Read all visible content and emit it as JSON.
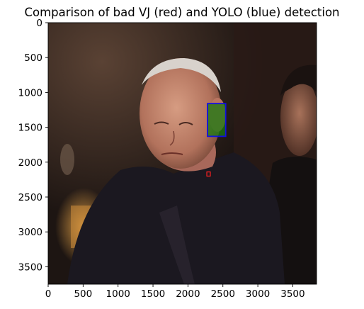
{
  "chart_data": {
    "type": "image",
    "title": "Comparison of bad VJ (red) and YOLO (blue) detection",
    "image_description_hidden": false,
    "xlim": [
      0,
      3840
    ],
    "ylim": [
      3750,
      0
    ],
    "xticks": [
      0,
      500,
      1000,
      1500,
      2000,
      2500,
      3000,
      3500
    ],
    "yticks": [
      0,
      500,
      1000,
      1500,
      2000,
      2500,
      3000,
      3500
    ],
    "xtick_labels": [
      "0",
      "500",
      "1000",
      "1500",
      "2000",
      "2500",
      "3000",
      "3500"
    ],
    "ytick_labels": [
      "0",
      "500",
      "1000",
      "1500",
      "2000",
      "2500",
      "3000",
      "3500"
    ],
    "detections": [
      {
        "name": "YOLO",
        "color": "#1010e0",
        "x0": 2280,
        "y0": 1160,
        "x1": 2540,
        "y1": 1630
      },
      {
        "name": "VJ",
        "color": "#ff2020",
        "x0": 2270,
        "y0": 2140,
        "x1": 2320,
        "y1": 2200
      }
    ]
  }
}
